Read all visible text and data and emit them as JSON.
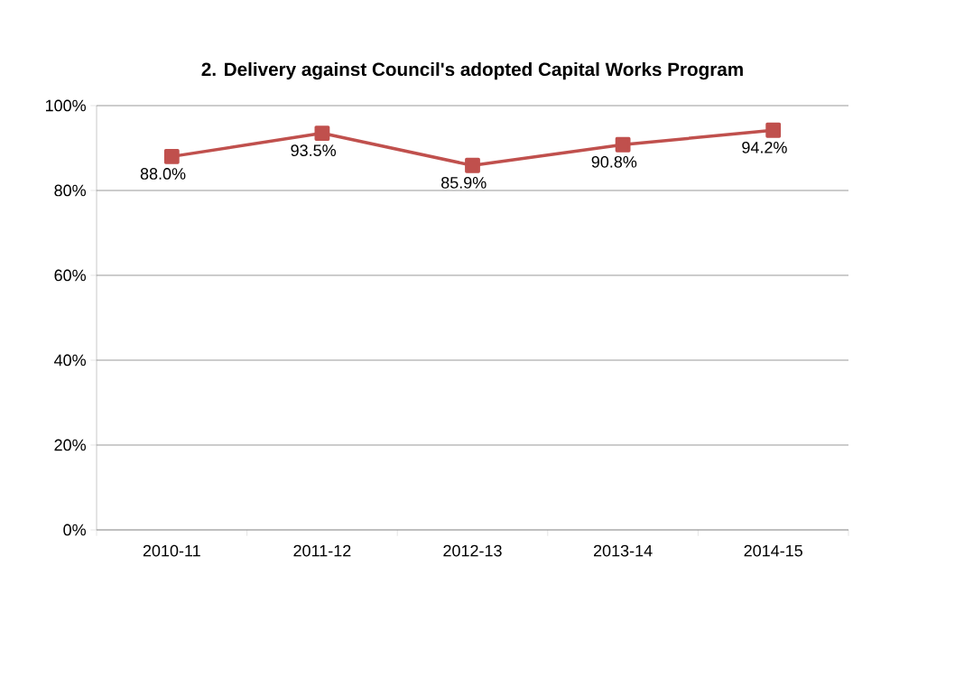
{
  "chart_data": {
    "type": "line",
    "title": "2. Delivery against Council's adopted Capital Works Program",
    "categories": [
      "2010-11",
      "2011-12",
      "2012-13",
      "2013-14",
      "2014-15"
    ],
    "series": [
      {
        "color": "#c0504d",
        "values": [
          88.0,
          93.5,
          85.9,
          90.8,
          94.2
        ],
        "value_labels": [
          "88.0%",
          "93.5%",
          "85.9%",
          "90.8%",
          "94.2%"
        ]
      }
    ],
    "ylim": [
      0,
      100
    ],
    "yticks": [
      {
        "value": 0,
        "label": "0%"
      },
      {
        "value": 20,
        "label": "20%"
      },
      {
        "value": 40,
        "label": "40%"
      },
      {
        "value": 60,
        "label": "60%"
      },
      {
        "value": 80,
        "label": "80%"
      },
      {
        "value": 100,
        "label": "100%"
      }
    ],
    "grid": "y",
    "marker": "square",
    "line_style": "solid"
  }
}
